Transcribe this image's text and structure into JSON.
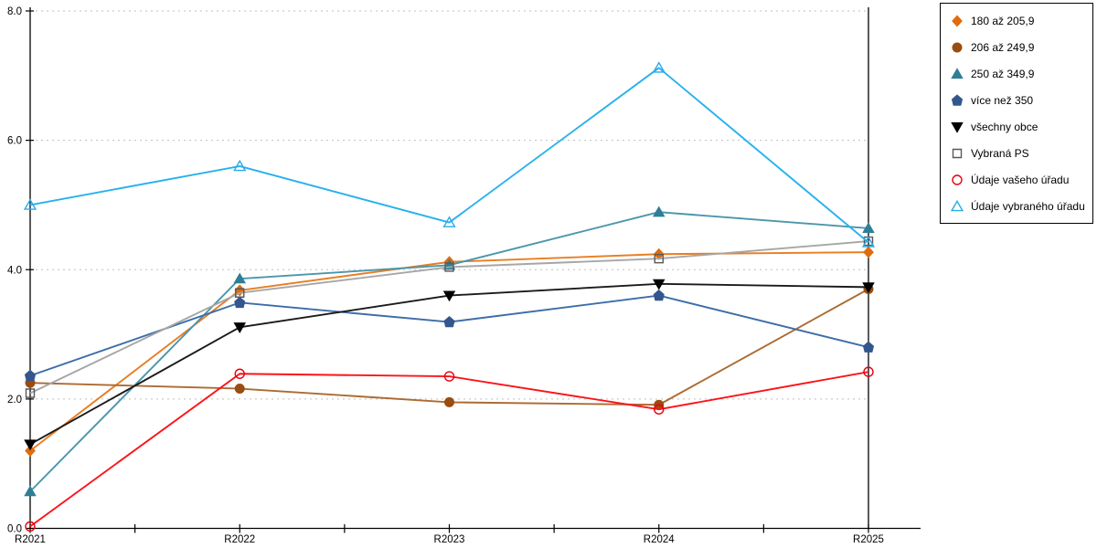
{
  "chart_data": {
    "type": "line",
    "title": "",
    "xlabel": "",
    "ylabel": "",
    "categories": [
      "R2021",
      "R2022",
      "R2023",
      "R2024",
      "R2025"
    ],
    "series": [
      {
        "name": "180 až 205,9",
        "values": [
          1.2,
          3.68,
          4.12,
          4.24,
          4.27
        ],
        "line_color": "#E87E22",
        "marker_color": "#E06C0C",
        "marker": "diamond",
        "marker_style": "filled"
      },
      {
        "name": "206 až 249,9",
        "values": [
          2.25,
          2.16,
          1.95,
          1.91,
          3.7
        ],
        "line_color": "#AB6B32",
        "marker_color": "#9A4D10",
        "marker": "circle",
        "marker_style": "filled"
      },
      {
        "name": "250 až 349,9",
        "values": [
          0.57,
          3.86,
          4.07,
          4.89,
          4.64
        ],
        "line_color": "#4A96AB",
        "marker_color": "#2E7F96",
        "marker": "triangle",
        "marker_style": "filled"
      },
      {
        "name": "více než 350",
        "values": [
          2.36,
          3.49,
          3.19,
          3.6,
          2.8
        ],
        "line_color": "#3C6DA8",
        "marker_color": "#33568E",
        "marker": "pentagon",
        "marker_style": "filled"
      },
      {
        "name": "všechny obce",
        "values": [
          1.3,
          3.11,
          3.6,
          3.78,
          3.73
        ],
        "line_color": "#1A1A1A",
        "marker_color": "#000000",
        "marker": "triangle-down",
        "marker_style": "filled"
      },
      {
        "name": "Vybraná PS",
        "values": [
          2.09,
          3.64,
          4.04,
          4.17,
          4.44
        ],
        "line_color": "#A6A6A6",
        "marker_color": "#595959",
        "marker": "square",
        "marker_style": "outline"
      },
      {
        "name": "Údaje vašeho úřadu",
        "values": [
          0.03,
          2.39,
          2.35,
          1.84,
          2.42
        ],
        "line_color": "#FB1419",
        "marker_color": "#E8000D",
        "marker": "circle",
        "marker_style": "outline"
      },
      {
        "name": "Údaje vybraného úřadu",
        "values": [
          5.0,
          5.6,
          4.73,
          7.12,
          4.42
        ],
        "line_color": "#27B1EC",
        "marker_color": "#29ABE9",
        "marker": "triangle",
        "marker_style": "outline"
      }
    ],
    "ylim": [
      0,
      8
    ],
    "y_tick_labels": [
      "0.0",
      "2.0",
      "4.0",
      "6.0",
      "8.0"
    ],
    "y_tick_values": [
      0,
      2,
      4,
      6,
      8
    ],
    "grid": "horizontal-dotted",
    "gridline_color": "#BFBFBF",
    "axis_color": "#000000",
    "legend_position": "top-right"
  }
}
